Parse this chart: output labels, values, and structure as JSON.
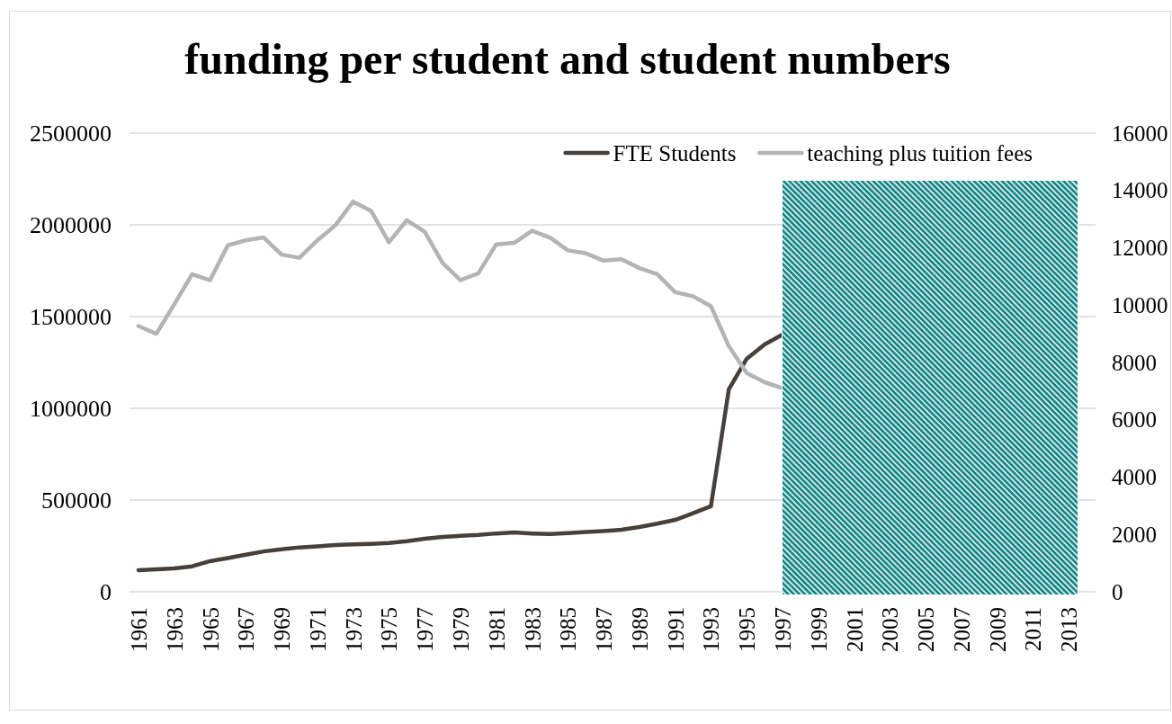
{
  "chart_data": {
    "type": "line",
    "title": "funding per student and student numbers",
    "categories": [
      "1961",
      null,
      "1963",
      null,
      "1965",
      null,
      "1967",
      null,
      "1969",
      null,
      "1971",
      null,
      "1973",
      null,
      "1975",
      null,
      "1977",
      null,
      "1979",
      null,
      "1981",
      null,
      "1983",
      null,
      "1985",
      null,
      "1987",
      null,
      "1989",
      null,
      "1991",
      null,
      "1993",
      null,
      "1995",
      null,
      "1997",
      null,
      "1999",
      null,
      "2001",
      null,
      "2003",
      null,
      "2005",
      null,
      "2007",
      null,
      "2009",
      null,
      "2011",
      null,
      "2013",
      null
    ],
    "series": [
      {
        "name": "FTE Students",
        "color": "#463f3a",
        "values": [
          118000,
          122000,
          127000,
          139000,
          167000,
          184000,
          202000,
          220000,
          232000,
          242000,
          248000,
          255000,
          258000,
          261000,
          266000,
          276000,
          289000,
          299000,
          305000,
          310000,
          318000,
          323000,
          318000,
          315000,
          320000,
          326000,
          331000,
          338000,
          353000,
          371000,
          392000,
          428000,
          466000,
          1103000,
          1270000,
          1348000,
          1402000,
          null,
          null,
          null,
          null,
          null,
          null,
          null,
          null,
          null,
          null,
          null,
          null,
          null,
          null,
          null,
          null,
          null
        ]
      },
      {
        "name": "teaching plus tuition fees",
        "color": "#b4b4b4",
        "axis": "y2",
        "values": [
          9270,
          9000,
          10030,
          11080,
          10870,
          12090,
          12260,
          12360,
          11760,
          11650,
          12260,
          12780,
          13610,
          13290,
          12190,
          12960,
          12560,
          11470,
          10870,
          11110,
          12120,
          12170,
          12590,
          12360,
          11910,
          11810,
          11550,
          11600,
          11290,
          11080,
          10450,
          10310,
          9960,
          8570,
          7630,
          7310,
          7100,
          null,
          null,
          null,
          null,
          null,
          null,
          null,
          null,
          null,
          null,
          null,
          null,
          null,
          null,
          null,
          null,
          null
        ]
      }
    ],
    "ylim": [
      0,
      2500000
    ],
    "yticks": [
      0,
      500000,
      1000000,
      1500000,
      2000000,
      2500000
    ],
    "y2lim": [
      0,
      16000
    ],
    "y2ticks": [
      0,
      2000,
      4000,
      6000,
      8000,
      10000,
      12000,
      14000,
      16000
    ],
    "grid": "y",
    "legend": "top right",
    "bands": [
      {
        "axis": "x",
        "from": "1997",
        "to": "2013",
        "color": "#008b8b"
      }
    ]
  }
}
